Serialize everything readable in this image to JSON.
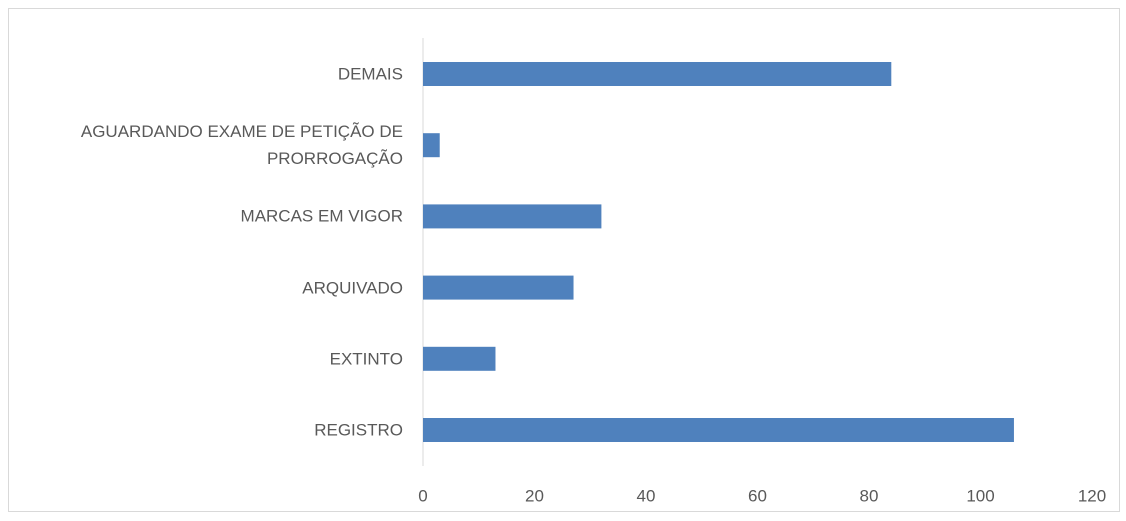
{
  "chart_data": {
    "type": "hbar",
    "categories": [
      "DEMAIS",
      "AGUARDANDO EXAME DE PETIÇÃO DE PRORROGAÇÃO",
      "MARCAS EM VIGOR",
      "ARQUIVADO",
      "EXTINTO",
      "REGISTRO"
    ],
    "values": [
      84,
      3,
      32,
      27,
      13,
      106
    ],
    "color": "#4f81bd",
    "xlim": [
      0,
      120
    ],
    "xticks": [
      0,
      20,
      40,
      60,
      80,
      100,
      120
    ],
    "grid": false
  }
}
